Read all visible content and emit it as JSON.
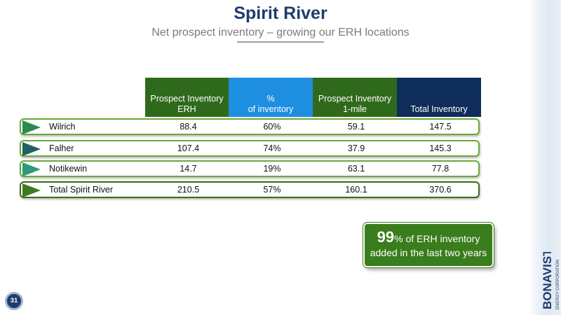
{
  "header": {
    "title": "Spirit River",
    "subtitle": "Net prospect inventory – growing our ERH locations"
  },
  "table": {
    "columns": [
      "Prospect Inventory\nERH",
      "%\nof inventory",
      "Prospect Inventory\n1-mile",
      "Total Inventory"
    ],
    "header_colors": [
      "#2f6a1c",
      "#1e8ee0",
      "#2f6a1c",
      "#0f2d5a"
    ],
    "rows": [
      {
        "label": "Wilrich",
        "erh": "88.4",
        "pct": "60%",
        "mile": "59.1",
        "total": "147.5"
      },
      {
        "label": "Falher",
        "erh": "107.4",
        "pct": "74%",
        "mile": "37.9",
        "total": "145.3"
      },
      {
        "label": "Notikewin",
        "erh": "14.7",
        "pct": "19%",
        "mile": "63.1",
        "total": "77.8"
      },
      {
        "label": "Total Spirit River",
        "erh": "210.5",
        "pct": "57%",
        "mile": "160.1",
        "total": "370.6"
      }
    ]
  },
  "callout": {
    "big": "99",
    "rest1": "% of ERH inventory",
    "line2": "added in the last two years",
    "color": "#3a7d1c"
  },
  "footer": {
    "page_number": "31",
    "logo_name": "BONAVISTA",
    "logo_sub": "ENERGY CORPORATION"
  }
}
